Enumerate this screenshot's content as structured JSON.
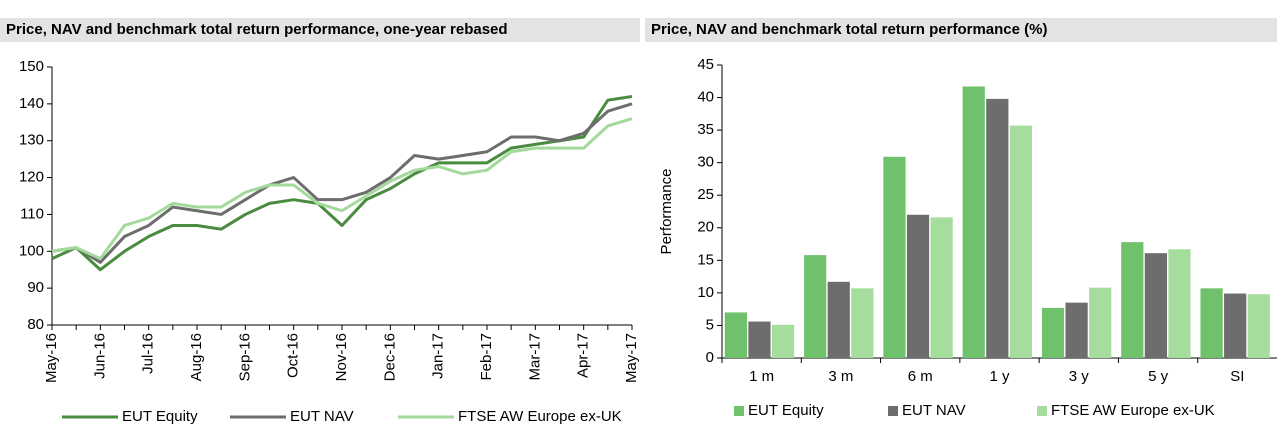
{
  "chart_data": [
    {
      "type": "line",
      "title": "Price, NAV and benchmark total return performance, one-year rebased",
      "categories": [
        "May-16",
        null,
        "Jun-16",
        null,
        "Jul-16",
        null,
        "Aug-16",
        null,
        "Sep-16",
        null,
        "Oct-16",
        null,
        "Nov-16",
        null,
        "Dec-16",
        null,
        "Jan-17",
        null,
        "Feb-17",
        null,
        "Mar-17",
        null,
        "Apr-17",
        null,
        "May-17"
      ],
      "ylim": [
        80,
        150
      ],
      "yticks": [
        80,
        90,
        100,
        110,
        120,
        130,
        140,
        150
      ],
      "series": [
        {
          "name": "EUT Equity",
          "color": "#4a8c3f",
          "values": [
            98,
            101,
            95,
            100,
            104,
            107,
            107,
            106,
            110,
            113,
            114,
            113,
            107,
            114,
            117,
            121,
            124,
            124,
            124,
            128,
            129,
            130,
            131,
            141,
            142
          ]
        },
        {
          "name": "EUT NAV",
          "color": "#6d6d6d",
          "values": [
            100,
            101,
            97,
            104,
            107,
            112,
            111,
            110,
            114,
            118,
            120,
            114,
            114,
            116,
            120,
            126,
            125,
            126,
            127,
            131,
            131,
            130,
            132,
            138,
            140
          ]
        },
        {
          "name": "FTSE AW Europe ex-UK",
          "color": "#a3da9b",
          "values": [
            100,
            101,
            98,
            107,
            109,
            113,
            112,
            112,
            116,
            118,
            118,
            113,
            111,
            115,
            119,
            122,
            123,
            121,
            122,
            127,
            128,
            128,
            128,
            134,
            136
          ]
        }
      ]
    },
    {
      "type": "bar",
      "title": "Price, NAV and benchmark total return performance (%)",
      "y_label": "Performance",
      "categories": [
        "1 m",
        "3 m",
        "6 m",
        "1 y",
        "3 y",
        "5 y",
        "SI"
      ],
      "ylim": [
        0,
        45
      ],
      "yticks": [
        0,
        5,
        10,
        15,
        20,
        25,
        30,
        35,
        40,
        45
      ],
      "series": [
        {
          "name": "EUT Equity",
          "color": "#70c16b",
          "values": [
            7.0,
            15.8,
            30.9,
            41.7,
            7.7,
            17.8,
            10.7
          ]
        },
        {
          "name": "EUT NAV",
          "color": "#6d6d6d",
          "values": [
            5.6,
            11.7,
            22.0,
            39.8,
            8.5,
            16.1,
            9.9
          ]
        },
        {
          "name": "FTSE AW Europe ex-UK",
          "color": "#a5dd9c",
          "values": [
            5.1,
            10.7,
            21.6,
            35.7,
            10.8,
            16.7,
            9.8
          ]
        }
      ]
    }
  ]
}
